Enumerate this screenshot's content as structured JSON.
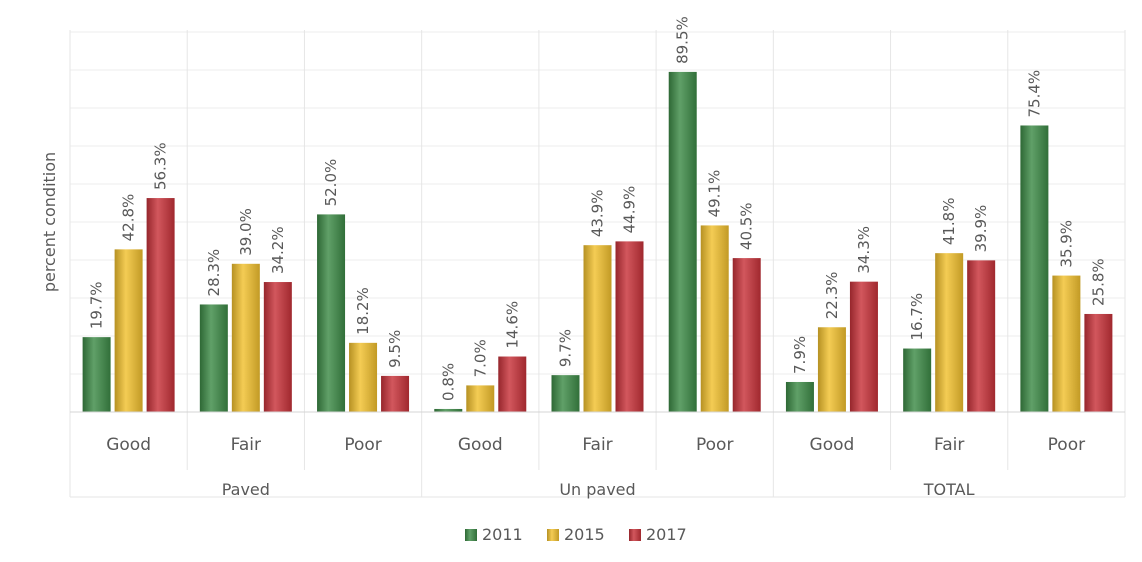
{
  "chart_data": {
    "type": "bar",
    "ylabel": "percent condition",
    "ylim": [
      0,
      100
    ],
    "grid": true,
    "legend_position": "bottom",
    "groups": [
      "Paved",
      "Un paved",
      "TOTAL"
    ],
    "categories": [
      "Good",
      "Fair",
      "Poor",
      "Good",
      "Fair",
      "Poor",
      "Good",
      "Fair",
      "Poor"
    ],
    "series": [
      {
        "name": "2011",
        "color": "#3d8b47",
        "values": [
          19.7,
          28.3,
          52.0,
          0.8,
          9.7,
          89.5,
          7.9,
          16.7,
          75.4
        ],
        "labels": [
          "19.7%",
          "28.3%",
          "52.0%",
          "0.8%",
          "9.7%",
          "89.5%",
          "7.9%",
          "16.7%",
          "75.4%"
        ]
      },
      {
        "name": "2015",
        "color": "#f2c12e",
        "values": [
          42.8,
          39.0,
          18.2,
          7.0,
          43.9,
          49.1,
          22.3,
          41.8,
          35.9
        ],
        "labels": [
          "42.8%",
          "39.0%",
          "18.2%",
          "7.0%",
          "43.9%",
          "49.1%",
          "22.3%",
          "41.8%",
          "35.9%"
        ]
      },
      {
        "name": "2017",
        "color": "#c8323a",
        "values": [
          56.3,
          34.2,
          9.5,
          14.6,
          44.9,
          40.5,
          34.3,
          39.9,
          25.8
        ],
        "labels": [
          "56.3%",
          "34.2%",
          "9.5%",
          "14.6%",
          "44.9%",
          "40.5%",
          "34.3%",
          "39.9%",
          "25.8%"
        ]
      }
    ]
  }
}
